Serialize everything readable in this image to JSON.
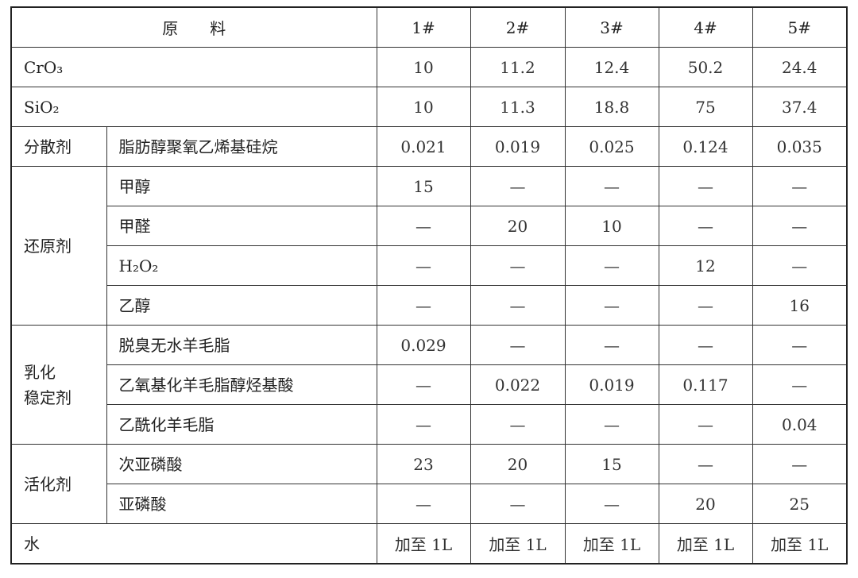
{
  "header": {
    "title": "原　　料",
    "samples": [
      "1#",
      "2#",
      "3#",
      "4#",
      "5#"
    ]
  },
  "groups": [
    {
      "label": "CrO₃",
      "values": [
        "10",
        "11.2",
        "12.4",
        "50.2",
        "24.4"
      ]
    },
    {
      "label": "SiO₂",
      "values": [
        "10",
        "11.3",
        "18.8",
        "75",
        "37.4"
      ]
    },
    {
      "label": "分散剂",
      "items": [
        {
          "name": "脂肪醇聚氧乙烯基硅烷",
          "values": [
            "0.021",
            "0.019",
            "0.025",
            "0.124",
            "0.035"
          ]
        }
      ]
    },
    {
      "label": "还原剂",
      "items": [
        {
          "name": "甲醇",
          "values": [
            "15",
            "—",
            "—",
            "—",
            "—"
          ]
        },
        {
          "name": "甲醛",
          "values": [
            "—",
            "20",
            "10",
            "—",
            "—"
          ]
        },
        {
          "name": "H₂O₂",
          "values": [
            "—",
            "—",
            "—",
            "12",
            "—"
          ]
        },
        {
          "name": "乙醇",
          "values": [
            "—",
            "—",
            "—",
            "—",
            "16"
          ]
        }
      ]
    },
    {
      "label": "乳化\n稳定剂",
      "items": [
        {
          "name": "脱臭无水羊毛脂",
          "values": [
            "0.029",
            "—",
            "—",
            "—",
            "—"
          ]
        },
        {
          "name": "乙氧基化羊毛脂醇烃基酸",
          "values": [
            "—",
            "0.022",
            "0.019",
            "0.117",
            "—"
          ]
        },
        {
          "name": "乙酰化羊毛脂",
          "values": [
            "—",
            "—",
            "—",
            "—",
            "0.04"
          ]
        }
      ]
    },
    {
      "label": "活化剂",
      "items": [
        {
          "name": "次亚磷酸",
          "values": [
            "23",
            "20",
            "15",
            "—",
            "—"
          ]
        },
        {
          "name": "亚磷酸",
          "values": [
            "—",
            "—",
            "—",
            "20",
            "25"
          ]
        }
      ]
    },
    {
      "label": "水",
      "values": [
        "加至 1L",
        "加至 1L",
        "加至 1L",
        "加至 1L",
        "加至 1L"
      ]
    }
  ]
}
